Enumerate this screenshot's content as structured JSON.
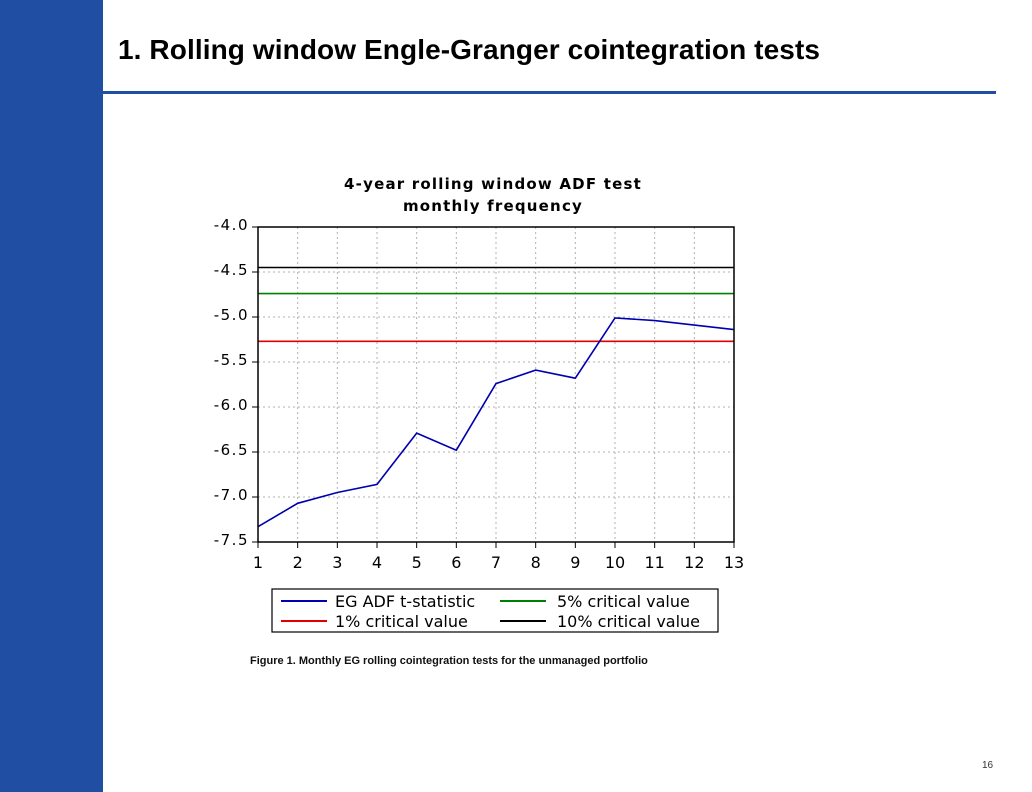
{
  "slide": {
    "title": "1. Rolling window Engle-Granger cointegration tests",
    "caption": "Figure 1. Monthly EG rolling cointegration tests for the unmanaged portfolio",
    "page_number": "16",
    "accent_color": "#1f4ea3"
  },
  "chart_data": {
    "type": "line",
    "title": [
      "4-year rolling window ADF test",
      "monthly frequency"
    ],
    "xlabel": "",
    "ylabel": "",
    "x": [
      1,
      2,
      3,
      4,
      5,
      6,
      7,
      8,
      9,
      10,
      11,
      12,
      13
    ],
    "xlim": [
      1,
      13
    ],
    "ylim": [
      -7.5,
      -4.0
    ],
    "yticks": [
      "-4.0",
      "-4.5",
      "-5.0",
      "-5.5",
      "-6.0",
      "-6.5",
      "-7.0",
      "-7.5"
    ],
    "ytick_values": [
      -4.0,
      -4.5,
      -5.0,
      -5.5,
      -6.0,
      -6.5,
      -7.0,
      -7.5
    ],
    "grid": true,
    "series": [
      {
        "name": "EG ADF t-statistic",
        "color": "#0000b0",
        "values": [
          -7.33,
          -7.07,
          -6.95,
          -6.86,
          -6.29,
          -6.48,
          -5.74,
          -5.59,
          -5.68,
          -5.01,
          -5.04,
          -5.09,
          -5.14
        ]
      },
      {
        "name": "5% critical value",
        "color": "#008000",
        "values": [
          -4.74,
          -4.74,
          -4.74,
          -4.74,
          -4.74,
          -4.74,
          -4.74,
          -4.74,
          -4.74,
          -4.74,
          -4.74,
          -4.74,
          -4.74
        ]
      },
      {
        "name": "1% critical value",
        "color": "#e00000",
        "values": [
          -5.27,
          -5.27,
          -5.27,
          -5.27,
          -5.27,
          -5.27,
          -5.27,
          -5.27,
          -5.27,
          -5.27,
          -5.27,
          -5.27,
          -5.27
        ]
      },
      {
        "name": "10% critical value",
        "color": "#000000",
        "values": [
          -4.45,
          -4.45,
          -4.45,
          -4.45,
          -4.45,
          -4.45,
          -4.45,
          -4.45,
          -4.45,
          -4.45,
          -4.45,
          -4.45,
          -4.45
        ]
      }
    ],
    "legend_position": "bottom"
  }
}
